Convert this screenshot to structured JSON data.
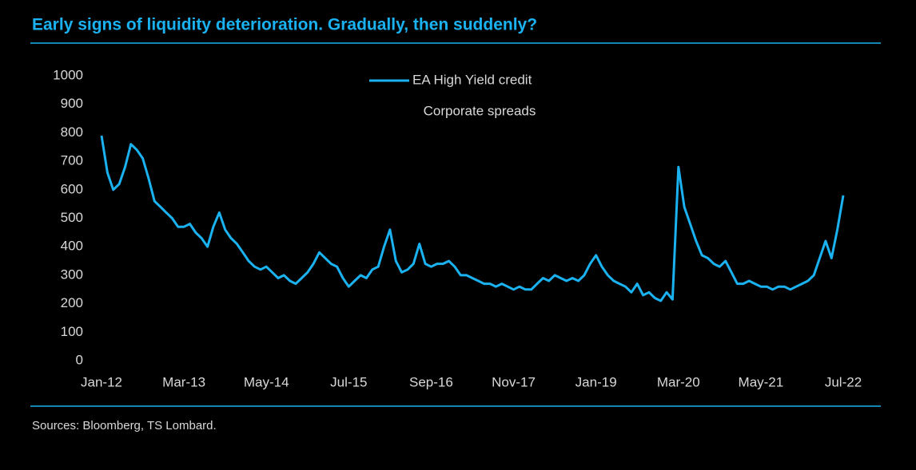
{
  "chart_data": {
    "type": "line",
    "title": "Early signs of liquidity deterioration. Gradually, then suddenly?",
    "subtitle": "Corporate spreads",
    "source": "Sources: Bloomberg, TS Lombard.",
    "categories": [
      "Jan-12",
      null,
      null,
      null,
      null,
      null,
      null,
      null,
      null,
      null,
      null,
      null,
      null,
      null,
      "Mar-13",
      null,
      null,
      null,
      null,
      null,
      null,
      null,
      null,
      null,
      null,
      null,
      null,
      null,
      "May-14",
      null,
      null,
      null,
      null,
      null,
      null,
      null,
      null,
      null,
      null,
      null,
      null,
      null,
      "Jul-15",
      null,
      null,
      null,
      null,
      null,
      null,
      null,
      null,
      null,
      null,
      null,
      null,
      null,
      "Sep-16",
      null,
      null,
      null,
      null,
      null,
      null,
      null,
      null,
      null,
      null,
      null,
      null,
      null,
      "Nov-17",
      null,
      null,
      null,
      null,
      null,
      null,
      null,
      null,
      null,
      null,
      null,
      null,
      null,
      "Jan-19",
      null,
      null,
      null,
      null,
      null,
      null,
      null,
      null,
      null,
      null,
      null,
      null,
      null,
      "Mar-20",
      null,
      null,
      null,
      null,
      null,
      null,
      null,
      null,
      null,
      null,
      null,
      null,
      null,
      "May-21",
      null,
      null,
      null,
      null,
      null,
      null,
      null,
      null,
      null,
      null,
      null,
      null,
      null,
      "Jul-22"
    ],
    "series": [
      {
        "name": "EA High Yield credit",
        "color": "#1ab2f0",
        "values": [
          790,
          660,
          600,
          620,
          680,
          760,
          740,
          710,
          640,
          560,
          540,
          520,
          500,
          470,
          470,
          480,
          450,
          430,
          400,
          470,
          520,
          460,
          430,
          410,
          380,
          350,
          330,
          320,
          330,
          310,
          290,
          300,
          280,
          270,
          290,
          310,
          340,
          380,
          360,
          340,
          330,
          290,
          260,
          280,
          300,
          290,
          320,
          330,
          400,
          460,
          350,
          310,
          320,
          340,
          410,
          340,
          330,
          340,
          340,
          350,
          330,
          300,
          300,
          290,
          280,
          270,
          270,
          260,
          270,
          260,
          250,
          260,
          250,
          250,
          270,
          290,
          280,
          300,
          290,
          280,
          290,
          280,
          300,
          340,
          370,
          330,
          300,
          280,
          270,
          260,
          240,
          270,
          230,
          240,
          220,
          210,
          240,
          215,
          680,
          540,
          480,
          420,
          370,
          360,
          340,
          330,
          350,
          310,
          270,
          270,
          280,
          270,
          260,
          260,
          250,
          260,
          260,
          250,
          260,
          270,
          280,
          300,
          360,
          420,
          360,
          460,
          580
        ]
      }
    ],
    "ylim": [
      0,
      1000
    ],
    "yticks": [
      0,
      100,
      200,
      300,
      400,
      500,
      600,
      700,
      800,
      900,
      1000
    ],
    "grid": false
  }
}
